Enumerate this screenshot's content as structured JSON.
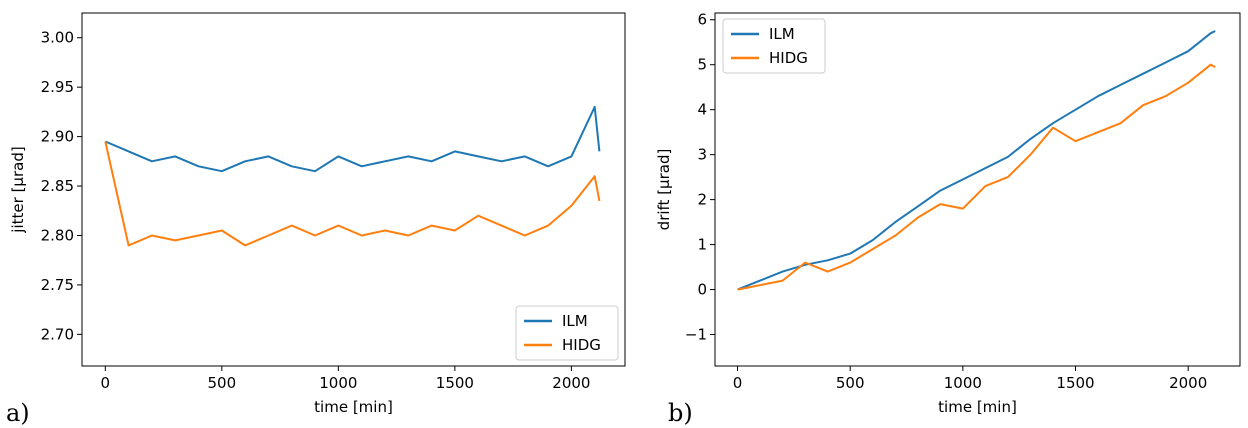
{
  "colors": {
    "ilm": "#1f77b4",
    "hidg": "#ff7f0e"
  },
  "chart_data": [
    {
      "panel_label": "a)",
      "type": "line",
      "xlabel": "time [min]",
      "ylabel": "jitter [μrad]",
      "xlim": [
        -100,
        2230
      ],
      "ylim": [
        2.668,
        3.025
      ],
      "xticks": [
        0,
        500,
        1000,
        1500,
        2000
      ],
      "yticks": [
        2.7,
        2.75,
        2.8,
        2.85,
        2.9,
        2.95,
        3.0
      ],
      "ytick_labels": [
        "2.70",
        "2.75",
        "2.80",
        "2.85",
        "2.90",
        "2.95",
        "3.00"
      ],
      "legend_position": "lower-right",
      "series": [
        {
          "name": "ILM",
          "x": [
            0,
            100,
            200,
            300,
            400,
            500,
            600,
            700,
            800,
            900,
            1000,
            1100,
            1200,
            1300,
            1400,
            1500,
            1600,
            1700,
            1800,
            1900,
            2000,
            2100,
            2120
          ],
          "y": [
            2.895,
            2.885,
            2.875,
            2.88,
            2.87,
            2.865,
            2.875,
            2.88,
            2.87,
            2.865,
            2.88,
            2.87,
            2.875,
            2.88,
            2.875,
            2.885,
            2.88,
            2.875,
            2.88,
            2.87,
            2.88,
            2.93,
            2.885
          ]
        },
        {
          "name": "HIDG",
          "x": [
            0,
            100,
            200,
            300,
            400,
            500,
            600,
            700,
            800,
            900,
            1000,
            1100,
            1200,
            1300,
            1400,
            1500,
            1600,
            1700,
            1800,
            1900,
            2000,
            2100,
            2120
          ],
          "y": [
            2.895,
            2.79,
            2.8,
            2.795,
            2.8,
            2.805,
            2.79,
            2.8,
            2.81,
            2.8,
            2.81,
            2.8,
            2.805,
            2.8,
            2.81,
            2.805,
            2.82,
            2.81,
            2.8,
            2.81,
            2.83,
            2.86,
            2.835
          ]
        }
      ]
    },
    {
      "panel_label": "b)",
      "type": "line",
      "xlabel": "time [min]",
      "ylabel": "drift [μrad]",
      "xlim": [
        -100,
        2230
      ],
      "ylim": [
        -1.7,
        6.15
      ],
      "xticks": [
        0,
        500,
        1000,
        1500,
        2000
      ],
      "yticks": [
        -1,
        0,
        1,
        2,
        3,
        4,
        5,
        6
      ],
      "ytick_labels": [
        "−1",
        "0",
        "1",
        "2",
        "3",
        "4",
        "5",
        "6"
      ],
      "legend_position": "upper-left",
      "series": [
        {
          "name": "ILM",
          "x": [
            0,
            100,
            200,
            300,
            400,
            500,
            600,
            700,
            800,
            900,
            1000,
            1100,
            1200,
            1300,
            1400,
            1500,
            1600,
            1700,
            1800,
            1900,
            2000,
            2100,
            2120
          ],
          "y": [
            0.0,
            0.2,
            0.4,
            0.55,
            0.65,
            0.8,
            1.1,
            1.5,
            1.85,
            2.2,
            2.45,
            2.7,
            2.95,
            3.35,
            3.7,
            4.0,
            4.3,
            4.55,
            4.8,
            5.05,
            5.3,
            5.7,
            5.75
          ]
        },
        {
          "name": "HIDG",
          "x": [
            0,
            100,
            200,
            300,
            400,
            500,
            600,
            700,
            800,
            900,
            1000,
            1100,
            1200,
            1300,
            1400,
            1500,
            1600,
            1700,
            1800,
            1900,
            2000,
            2100,
            2120
          ],
          "y": [
            0.0,
            0.1,
            0.2,
            0.6,
            0.4,
            0.6,
            0.9,
            1.2,
            1.6,
            1.9,
            1.8,
            2.3,
            2.5,
            3.0,
            3.6,
            3.3,
            3.5,
            3.7,
            4.1,
            4.3,
            4.6,
            5.0,
            4.95
          ]
        }
      ]
    }
  ]
}
